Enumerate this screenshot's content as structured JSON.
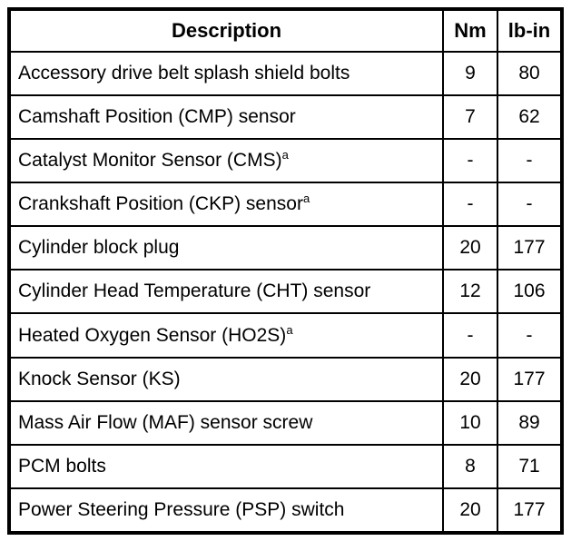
{
  "table": {
    "columns": [
      {
        "label": "Description"
      },
      {
        "label": "Nm"
      },
      {
        "label": "lb-in"
      }
    ],
    "rows": [
      {
        "description": "Accessory drive belt splash shield bolts",
        "sup": "",
        "nm": "9",
        "lb_in": "80"
      },
      {
        "description": "Camshaft Position (CMP) sensor",
        "sup": "",
        "nm": "7",
        "lb_in": "62"
      },
      {
        "description": "Catalyst Monitor Sensor (CMS)",
        "sup": "a",
        "nm": "-",
        "lb_in": "-"
      },
      {
        "description": "Crankshaft Position (CKP) sensor",
        "sup": "a",
        "nm": "-",
        "lb_in": "-"
      },
      {
        "description": "Cylinder block plug",
        "sup": "",
        "nm": "20",
        "lb_in": "177"
      },
      {
        "description": "Cylinder Head Temperature (CHT) sensor",
        "sup": "",
        "nm": "12",
        "lb_in": "106"
      },
      {
        "description": "Heated Oxygen Sensor (HO2S)",
        "sup": "a",
        "nm": "-",
        "lb_in": "-"
      },
      {
        "description": "Knock Sensor (KS)",
        "sup": "",
        "nm": "20",
        "lb_in": "177"
      },
      {
        "description": "Mass Air Flow (MAF) sensor screw",
        "sup": "",
        "nm": "10",
        "lb_in": "89"
      },
      {
        "description": "PCM bolts",
        "sup": "",
        "nm": "8",
        "lb_in": "71"
      },
      {
        "description": "Power Steering Pressure (PSP) switch",
        "sup": "",
        "nm": "20",
        "lb_in": "177"
      }
    ],
    "colors": {
      "border": "#000000",
      "background": "#ffffff",
      "text": "#000000"
    }
  }
}
